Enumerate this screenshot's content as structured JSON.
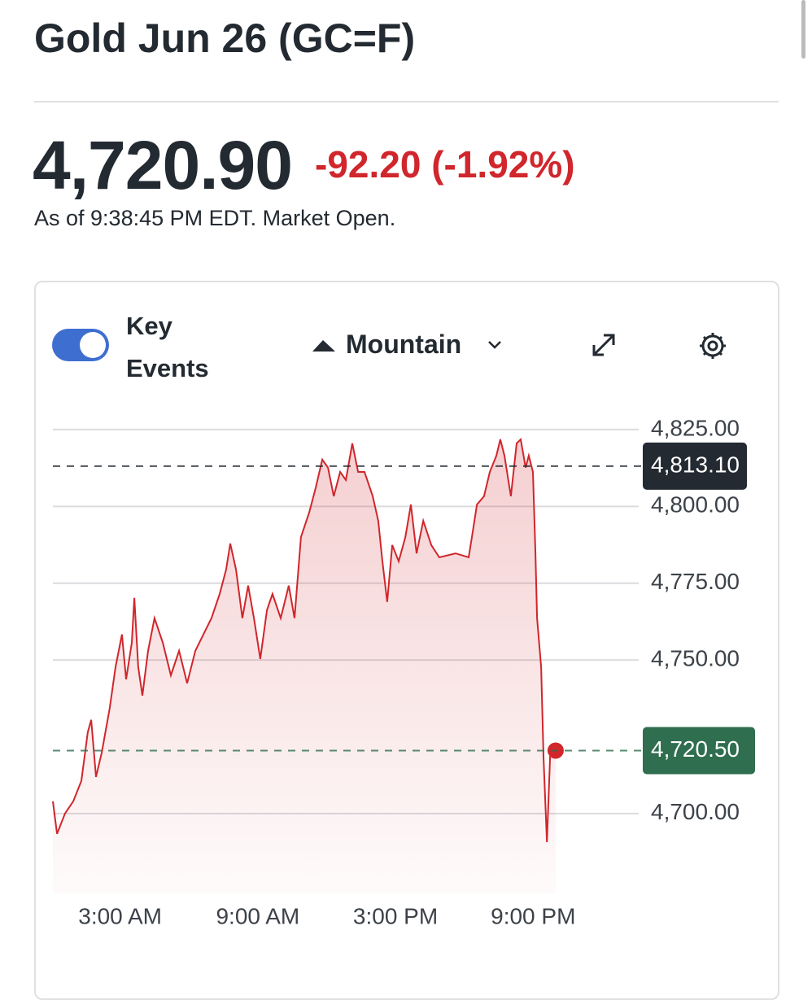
{
  "header": {
    "title": "Gold Jun 26 (GC=F)",
    "price": "4,720.90",
    "change": "-92.20 (-1.92%)",
    "status": "As of 9:38:45 PM EDT. Market Open."
  },
  "toolbar": {
    "toggle_label": "Key Events",
    "chart_style": "Mountain"
  },
  "chart_data": {
    "type": "line",
    "color": "#d0262c",
    "x": [
      0.07,
      0.25,
      0.6,
      0.96,
      1.31,
      1.59,
      1.74,
      1.95,
      2.2,
      2.55,
      2.8,
      3.08,
      3.26,
      3.51,
      3.62,
      3.79,
      3.97,
      4.22,
      4.5,
      4.86,
      5.21,
      5.57,
      5.92,
      6.28,
      6.63,
      6.98,
      7.34,
      7.62,
      7.8,
      8.05,
      8.33,
      8.58,
      8.83,
      9.11,
      9.4,
      9.64,
      10.0,
      10.35,
      10.6,
      10.88,
      11.24,
      11.52,
      11.81,
      12.06,
      12.31,
      12.59,
      12.84,
      13.12,
      13.37,
      13.65,
      14.01,
      14.25,
      14.43,
      14.64,
      14.86,
      15.14,
      15.43,
      15.67,
      15.92,
      16.21,
      16.56,
      16.91,
      17.62,
      18.19,
      18.33,
      18.55,
      18.86,
      19.11,
      19.4,
      19.57,
      19.75,
      20.03,
      20.28,
      20.46,
      20.67,
      20.81,
      20.99,
      21.1,
      21.17,
      21.35,
      21.45,
      21.6,
      21.74,
      21.98
    ],
    "values": [
      4704.0,
      4693.4,
      4700.0,
      4704.0,
      4710.6,
      4726.5,
      4730.5,
      4711.9,
      4719.9,
      4734.4,
      4747.7,
      4758.3,
      4743.7,
      4755.6,
      4770.2,
      4747.7,
      4738.4,
      4753.0,
      4763.6,
      4755.6,
      4745.0,
      4753.0,
      4742.4,
      4753.0,
      4758.3,
      4763.6,
      4771.5,
      4779.4,
      4787.9,
      4779.4,
      4763.6,
      4774.2,
      4763.6,
      4750.3,
      4766.2,
      4771.5,
      4763.6,
      4774.2,
      4763.6,
      4790.0,
      4798.0,
      4805.9,
      4815.2,
      4812.6,
      4803.3,
      4811.2,
      4808.6,
      4820.5,
      4811.2,
      4811.2,
      4803.3,
      4795.3,
      4782.1,
      4768.9,
      4787.4,
      4782.1,
      4790.0,
      4800.6,
      4784.7,
      4795.3,
      4787.4,
      4783.4,
      4784.7,
      4783.4,
      4790.0,
      4800.6,
      4803.3,
      4811.2,
      4816.5,
      4821.8,
      4816.5,
      4803.3,
      4820.5,
      4821.8,
      4812.6,
      4816.5,
      4811.2,
      4784.7,
      4763.6,
      4747.7,
      4718.5,
      4690.7,
      4718.5,
      4720.5
    ],
    "xlim": [
      0.07,
      25.6
    ],
    "xticks": [
      {
        "value": 3,
        "label": "3:00 AM"
      },
      {
        "value": 9,
        "label": "9:00 AM"
      },
      {
        "value": 15,
        "label": "3:00 PM"
      },
      {
        "value": 21,
        "label": "9:00 PM"
      }
    ],
    "ylim": [
      4674,
      4832.4
    ],
    "yticks": [
      {
        "value": 4700,
        "label": "4,700.00"
      },
      {
        "value": 4750,
        "label": "4,750.00"
      },
      {
        "value": 4775,
        "label": "4,775.00"
      },
      {
        "value": 4800,
        "label": "4,800.00"
      },
      {
        "value": 4825,
        "label": "4,825.00"
      }
    ],
    "grid": true,
    "reference_lines": [
      {
        "value": 4813.1,
        "label": "4,813.10",
        "color": "#232a31"
      },
      {
        "value": 4720.5,
        "label": "4,720.50",
        "color": "#2f6e4f"
      }
    ]
  }
}
